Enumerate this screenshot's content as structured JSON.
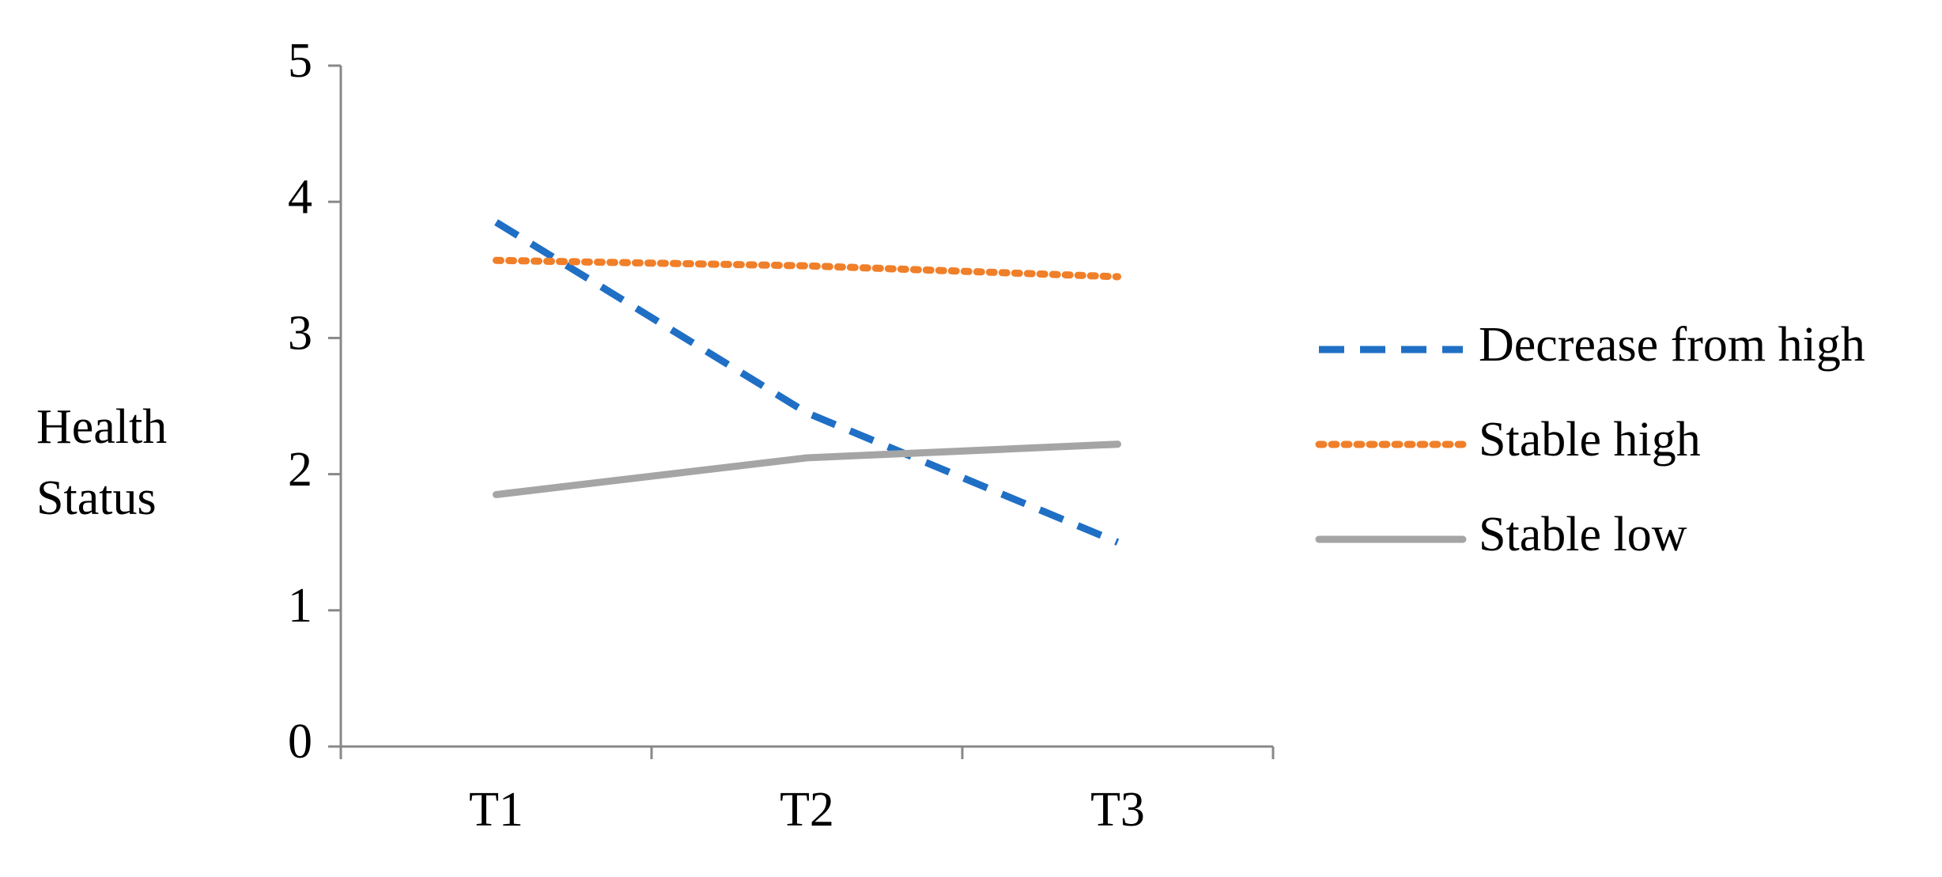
{
  "chart_data": {
    "type": "line",
    "ylabel": "Health Status",
    "categories": [
      "T1",
      "T2",
      "T3"
    ],
    "series": [
      {
        "name": "Decrease from high",
        "color": "#1f6fc5",
        "style": "dashed",
        "values": [
          3.85,
          2.45,
          1.5
        ]
      },
      {
        "name": "Stable high",
        "color": "#f07f2a",
        "style": "dotted",
        "values": [
          3.57,
          3.53,
          3.45
        ]
      },
      {
        "name": "Stable low",
        "color": "#a5a5a5",
        "style": "solid",
        "values": [
          1.85,
          2.12,
          2.22
        ]
      }
    ],
    "ylim": [
      0,
      5
    ],
    "yticks": [
      0,
      1,
      2,
      3,
      4,
      5
    ],
    "grid": false,
    "legend": "right"
  }
}
